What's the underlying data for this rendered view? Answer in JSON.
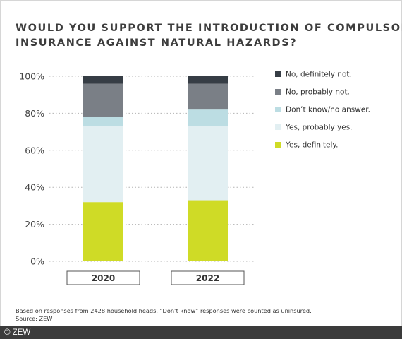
{
  "colors": {
    "no_definitely_not": "#363d45",
    "no_probably_not": "#7a7f86",
    "dont_know": "#bcdde3",
    "yes_probably_yes": "#e2eff2",
    "yes_definitely": "#cfdb26",
    "grid": "#b3b3b3",
    "frame_bar": "#3b3b3b"
  },
  "chart_data": {
    "type": "bar",
    "stacked": true,
    "title": "WOULD YOU SUPPORT THE INTRODUCTION OF COMPULSORY INSURANCE AGAINST NATURAL HAZARDS?",
    "title_lines": [
      "WOULD YOU SUPPORT THE INTRODUCTION OF COMPULSORY",
      "INSURANCE AGAINST NATURAL HAZARDS?"
    ],
    "categories": [
      "2020",
      "2022"
    ],
    "ylim": [
      0,
      100
    ],
    "yticks": [
      "0%",
      "20%",
      "40%",
      "60%",
      "80%",
      "100%"
    ],
    "ytick_values": [
      0,
      20,
      40,
      60,
      80,
      100
    ],
    "grid": true,
    "legend_position": "right",
    "series": [
      {
        "name": "Yes, definitely.",
        "color_key": "yes_definitely",
        "values": [
          32,
          33
        ]
      },
      {
        "name": "Yes, probably yes.",
        "color_key": "yes_probably_yes",
        "values": [
          41,
          40
        ]
      },
      {
        "name": "Don’t know/no answer.",
        "color_key": "dont_know",
        "values": [
          5,
          9
        ]
      },
      {
        "name": "No, probably not.",
        "color_key": "no_probably_not",
        "values": [
          18,
          14
        ]
      },
      {
        "name": "No, definitely not.",
        "color_key": "no_definitely_not",
        "values": [
          4,
          4
        ]
      }
    ]
  },
  "footnote": {
    "line1": "Based on responses from 2428 household heads. “Don’t know” responses were counted as uninsured.",
    "line2": "Source: ZEW"
  },
  "credit": "© ZEW"
}
